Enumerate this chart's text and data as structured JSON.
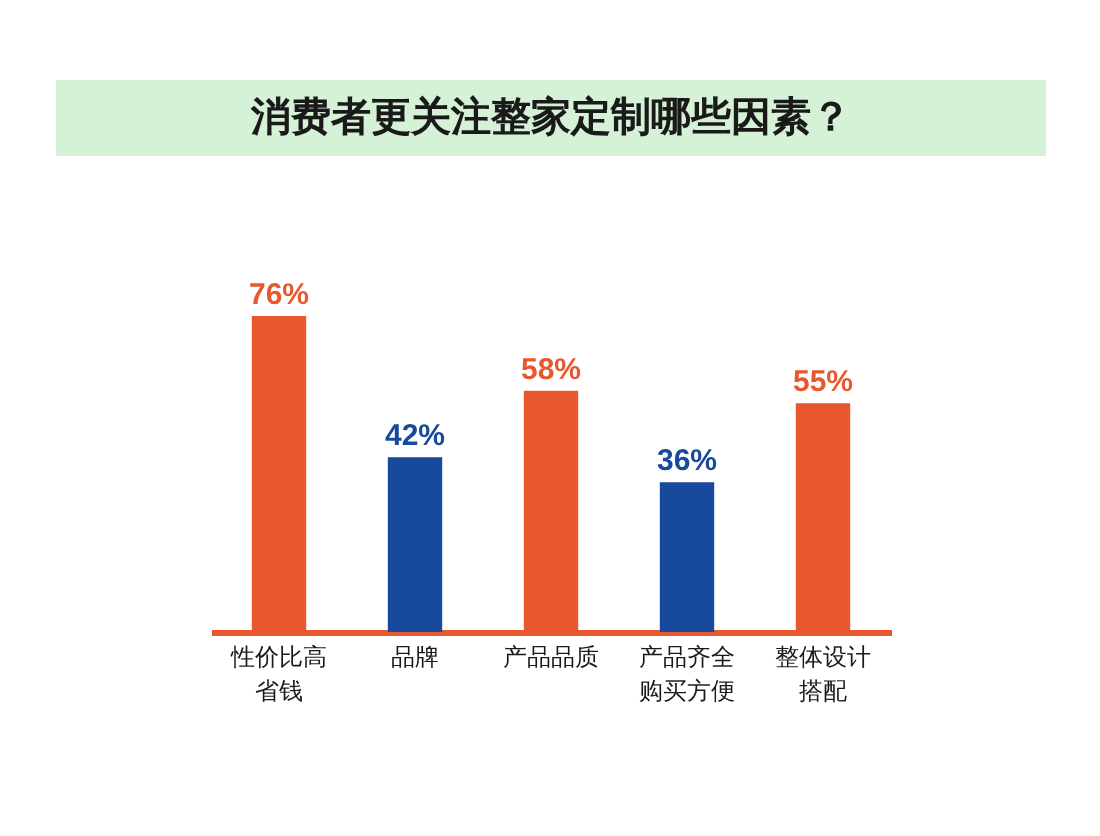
{
  "chart_data": {
    "type": "bar",
    "title": "消费者更关注整家定制哪些因素？",
    "categories": [
      "性价比高省钱",
      "品牌",
      "产品品质",
      "产品齐全购买方便",
      "整体设计搭配"
    ],
    "values": [
      76,
      42,
      58,
      36,
      55
    ],
    "colors": [
      "#e8582e",
      "#17499c",
      "#e8582e",
      "#17499c",
      "#e8582e"
    ],
    "value_labels": [
      "76%",
      "42%",
      "58%",
      "36%",
      "55%"
    ],
    "tick_labels": "x"
  }
}
